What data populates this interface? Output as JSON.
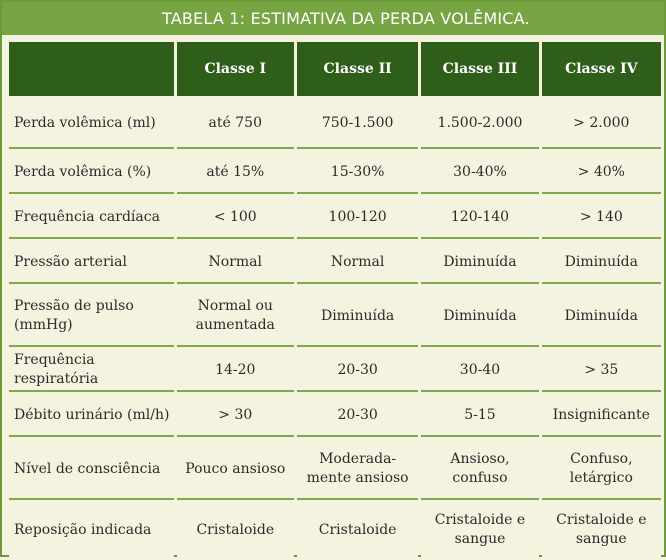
{
  "title": "TABELA 1: ESTIMATIVA DA PERDA VOLÊMICA.",
  "header": {
    "corner": "",
    "classes": [
      "Classe I",
      "Classe II",
      "Classe III",
      "Classe IV"
    ]
  },
  "rows": [
    {
      "label": "Perda volêmica (ml)",
      "values": [
        "até 750",
        "750-1.500",
        "1.500-2.000",
        "> 2.000"
      ]
    },
    {
      "label": "Perda volêmica (%)",
      "values": [
        "até 15%",
        "15-30%",
        "30-40%",
        "> 40%"
      ]
    },
    {
      "label": "Frequência cardíaca",
      "values": [
        "< 100",
        "100-120",
        "120-140",
        "> 140"
      ]
    },
    {
      "label": "Pressão arterial",
      "values": [
        "Normal",
        "Normal",
        "Diminuída",
        "Diminuída"
      ]
    },
    {
      "label": "Pressão de pulso (mmHg)",
      "values": [
        "Normal ou aumentada",
        "Diminuída",
        "Diminuída",
        "Diminuída"
      ]
    },
    {
      "label": "Frequência respiratória",
      "values": [
        "14-20",
        "20-30",
        "30-40",
        "> 35"
      ]
    },
    {
      "label": "Débito urinário (ml/h)",
      "values": [
        "> 30",
        "20-30",
        "5-15",
        "Insignificante"
      ]
    },
    {
      "label": "Nível de consciência",
      "values": [
        "Pouco ansioso",
        "Moderada-mente ansioso",
        "Ansioso, confuso",
        "Confuso, letárgico"
      ]
    },
    {
      "label": "Reposição indicada",
      "values": [
        "Cristaloide",
        "Cristaloide",
        "Cristaloide e sangue",
        "Cristaloide e sangue"
      ]
    }
  ],
  "colors": {
    "title_bg": "#77a544",
    "header_bg": "#2f5d1a",
    "background": "#f3f3df",
    "divider": "#7fa94c"
  }
}
